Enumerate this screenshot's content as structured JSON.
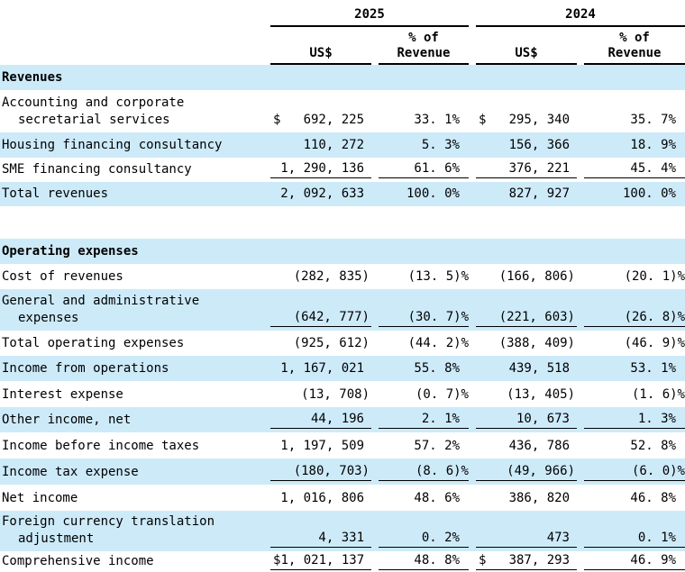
{
  "currency_symbol": "$",
  "header": {
    "year_2025": "2025",
    "year_2024": "2024",
    "col_us": "US$",
    "col_pct_line1": "% of",
    "col_pct_line2": "Revenue"
  },
  "rows": {
    "sec_revenues": {
      "label": "Revenues"
    },
    "accounting": {
      "label1": "Accounting and corporate",
      "label2": "secretarial services",
      "us2025": "692, 225",
      "pct2025": "33. 1%",
      "us2024": "295, 340",
      "pct2024": "35. 7%"
    },
    "housing": {
      "label": "Housing financing consultancy",
      "us2025": "110, 272",
      "pct2025": "5. 3%",
      "us2024": "156, 366",
      "pct2024": "18. 9%"
    },
    "sme": {
      "label": "SME financing consultancy",
      "us2025": "1, 290, 136",
      "pct2025": "61. 6%",
      "us2024": "376, 221",
      "pct2024": "45. 4%"
    },
    "total_rev": {
      "label": "Total revenues",
      "us2025": "2, 092, 633",
      "pct2025": "100. 0%",
      "us2024": "827, 927",
      "pct2024": "100. 0%"
    },
    "sec_opex": {
      "label": "Operating expenses"
    },
    "cost": {
      "label": "Cost of revenues",
      "us2025": "(282, 835)",
      "pct2025": "(13. 5)%",
      "us2024": "(166, 806)",
      "pct2024": "(20. 1)%"
    },
    "ga": {
      "label1": "General and administrative",
      "label2": "expenses",
      "us2025": "(642, 777)",
      "pct2025": "(30. 7)%",
      "us2024": "(221, 603)",
      "pct2024": "(26. 8)%"
    },
    "total_opex": {
      "label": "Total operating expenses",
      "us2025": "(925, 612)",
      "pct2025": "(44. 2)%",
      "us2024": "(388, 409)",
      "pct2024": "(46. 9)%"
    },
    "inc_ops": {
      "label": "Income from operations",
      "us2025": "1, 167, 021",
      "pct2025": "55. 8%",
      "us2024": "439, 518",
      "pct2024": "53. 1%"
    },
    "interest": {
      "label": "Interest expense",
      "us2025": "(13, 708)",
      "pct2025": "(0. 7)%",
      "us2024": "(13, 405)",
      "pct2024": "(1. 6)%"
    },
    "other_income": {
      "label": "Other income, net",
      "us2025": "44, 196",
      "pct2025": "2. 1%",
      "us2024": "10, 673",
      "pct2024": "1. 3%"
    },
    "ibt": {
      "label": "Income before income taxes",
      "us2025": "1, 197, 509",
      "pct2025": "57. 2%",
      "us2024": "436, 786",
      "pct2024": "52. 8%"
    },
    "tax": {
      "label": "Income tax expense",
      "us2025": "(180, 703)",
      "pct2025": "(8. 6)%",
      "us2024": "(49, 966)",
      "pct2024": "(6. 0)%"
    },
    "net_income": {
      "label": "Net income",
      "us2025": "1, 016, 806",
      "pct2025": "48. 6%",
      "us2024": "386, 820",
      "pct2024": "46. 8%"
    },
    "fx": {
      "label1": "Foreign currency translation",
      "label2": "adjustment",
      "us2025": "4, 331",
      "pct2025": "0. 2%",
      "us2024": "473",
      "pct2024": "0. 1%"
    },
    "comprehensive": {
      "label": "Comprehensive income",
      "us2025": "1, 021, 137",
      "pct2025": "48. 8%",
      "us2024": "387, 293",
      "pct2024": "46. 9%"
    }
  },
  "colors": {
    "row_highlight": "#cdeaf9",
    "rule": "#000000",
    "text": "#000000"
  }
}
